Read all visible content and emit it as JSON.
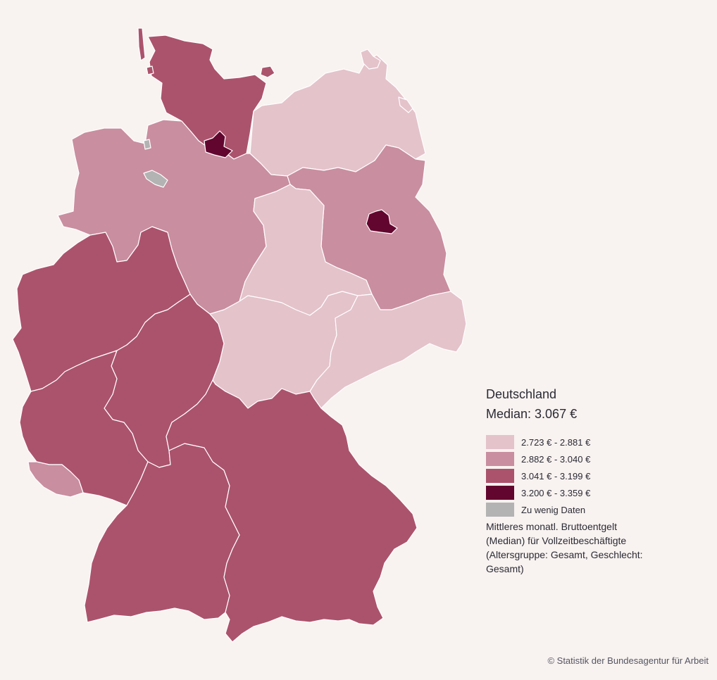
{
  "legend": {
    "title": "Deutschland",
    "median": "Median: 3.067 €",
    "classes": [
      {
        "label": "2.723 € - 2.881 €",
        "color": "#e4c3cb"
      },
      {
        "label": "2.882 € - 3.040 €",
        "color": "#c98ea0"
      },
      {
        "label": "3.041 € - 3.199 €",
        "color": "#ab536d"
      },
      {
        "label": "3.200 € - 3.359 €",
        "color": "#63062f"
      },
      {
        "label": "Zu wenig Daten",
        "color": "#b3b3b3"
      }
    ],
    "note": "Mittleres monatl. Bruttoentgelt (Median) für Vollzeitbeschäftigte (Altersgruppe: Gesamt, Geschlecht: Gesamt)"
  },
  "credit": "© Statistik der Bundesagentur für Arbeit",
  "regions": [
    {
      "name": "Schleswig-Holstein",
      "class_index": 2
    },
    {
      "name": "Hamburg",
      "class_index": 3
    },
    {
      "name": "Mecklenburg-Vorpommern",
      "class_index": 0
    },
    {
      "name": "Niedersachsen",
      "class_index": 1
    },
    {
      "name": "Bremen",
      "class_index": 4
    },
    {
      "name": "Brandenburg",
      "class_index": 1
    },
    {
      "name": "Berlin",
      "class_index": 3
    },
    {
      "name": "Sachsen-Anhalt",
      "class_index": 0
    },
    {
      "name": "Nordrhein-Westfalen",
      "class_index": 2
    },
    {
      "name": "Hessen",
      "class_index": 2
    },
    {
      "name": "Thüringen",
      "class_index": 0
    },
    {
      "name": "Sachsen",
      "class_index": 0
    },
    {
      "name": "Rheinland-Pfalz",
      "class_index": 2
    },
    {
      "name": "Saarland",
      "class_index": 1
    },
    {
      "name": "Baden-Württemberg",
      "class_index": 2
    },
    {
      "name": "Bayern",
      "class_index": 2
    }
  ]
}
